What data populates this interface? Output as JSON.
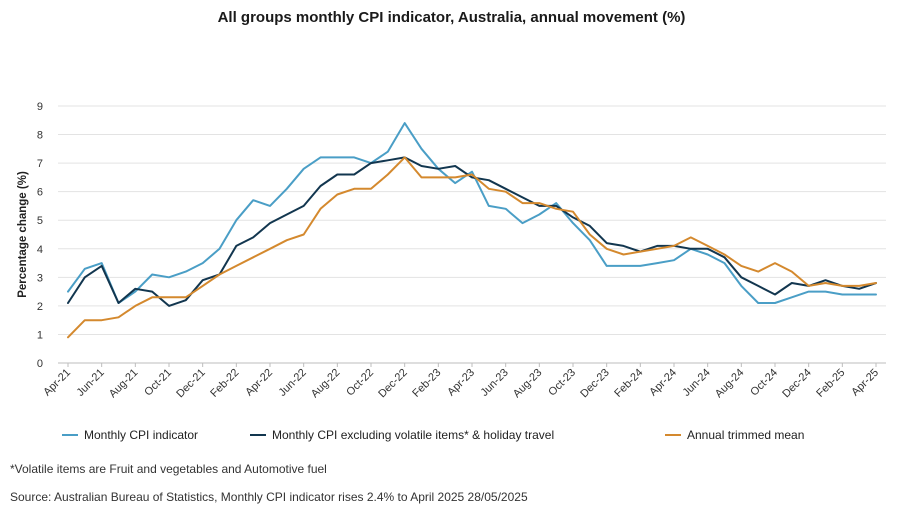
{
  "chart_data": {
    "type": "line",
    "title": "All groups monthly CPI indicator, Australia, annual movement (%)",
    "ylabel": "Percentage change (%)",
    "xlabel": "",
    "ylim": [
      0,
      9
    ],
    "yticks": [
      "0",
      "1",
      "2",
      "3",
      "4",
      "5",
      "6",
      "7",
      "8",
      "9"
    ],
    "grid": "horizontal",
    "legend_position": "bottom",
    "x": [
      "Apr-21",
      "May-21",
      "Jun-21",
      "Jul-21",
      "Aug-21",
      "Sep-21",
      "Oct-21",
      "Nov-21",
      "Dec-21",
      "Jan-22",
      "Feb-22",
      "Mar-22",
      "Apr-22",
      "May-22",
      "Jun-22",
      "Jul-22",
      "Aug-22",
      "Sep-22",
      "Oct-22",
      "Nov-22",
      "Dec-22",
      "Jan-23",
      "Feb-23",
      "Mar-23",
      "Apr-23",
      "May-23",
      "Jun-23",
      "Jul-23",
      "Aug-23",
      "Sep-23",
      "Oct-23",
      "Nov-23",
      "Dec-23",
      "Jan-24",
      "Feb-24",
      "Mar-24",
      "Apr-24",
      "May-24",
      "Jun-24",
      "Jul-24",
      "Aug-24",
      "Sep-24",
      "Oct-24",
      "Nov-24",
      "Dec-24",
      "Jan-25",
      "Feb-25",
      "Mar-25",
      "Apr-25"
    ],
    "x_tick_labels": [
      "Apr-21",
      "Jun-21",
      "Aug-21",
      "Oct-21",
      "Dec-21",
      "Feb-22",
      "Apr-22",
      "Jun-22",
      "Aug-22",
      "Oct-22",
      "Dec-22",
      "Feb-23",
      "Apr-23",
      "Jun-23",
      "Aug-23",
      "Oct-23",
      "Dec-23",
      "Feb-24",
      "Apr-24",
      "Jun-24",
      "Aug-24",
      "Oct-24",
      "Dec-24",
      "Feb-25",
      "Apr-25"
    ],
    "series": [
      {
        "name": "Monthly CPI indicator",
        "color": "#4a9ec6",
        "values": [
          2.5,
          3.3,
          3.5,
          2.1,
          2.5,
          3.1,
          3.0,
          3.2,
          3.5,
          4.0,
          5.0,
          5.7,
          5.5,
          6.1,
          6.8,
          7.2,
          7.2,
          7.2,
          7.0,
          7.4,
          8.4,
          7.5,
          6.8,
          6.3,
          6.7,
          5.5,
          5.4,
          4.9,
          5.2,
          5.6,
          4.9,
          4.3,
          3.4,
          3.4,
          3.4,
          3.5,
          3.6,
          4.0,
          3.8,
          3.5,
          2.7,
          2.1,
          2.1,
          2.3,
          2.5,
          2.5,
          2.4,
          2.4,
          2.4
        ]
      },
      {
        "name": "Monthly CPI excluding volatile items* & holiday travel",
        "color": "#12364f",
        "values": [
          2.1,
          3.0,
          3.4,
          2.1,
          2.6,
          2.5,
          2.0,
          2.2,
          2.9,
          3.1,
          4.1,
          4.4,
          4.9,
          5.2,
          5.5,
          6.2,
          6.6,
          6.6,
          7.0,
          7.1,
          7.2,
          6.9,
          6.8,
          6.9,
          6.5,
          6.4,
          6.1,
          5.8,
          5.5,
          5.5,
          5.1,
          4.8,
          4.2,
          4.1,
          3.9,
          4.1,
          4.1,
          4.0,
          4.0,
          3.7,
          3.0,
          2.7,
          2.4,
          2.8,
          2.7,
          2.9,
          2.7,
          2.6,
          2.8
        ]
      },
      {
        "name": "Annual trimmed mean",
        "color": "#d4892e",
        "values": [
          0.9,
          1.5,
          1.5,
          1.6,
          2.0,
          2.3,
          2.3,
          2.3,
          2.7,
          3.1,
          3.4,
          3.7,
          4.0,
          4.3,
          4.5,
          5.4,
          5.9,
          6.1,
          6.1,
          6.6,
          7.2,
          6.5,
          6.5,
          6.5,
          6.6,
          6.1,
          6.0,
          5.6,
          5.6,
          5.4,
          5.3,
          4.5,
          4.0,
          3.8,
          3.9,
          4.0,
          4.1,
          4.4,
          4.1,
          3.8,
          3.4,
          3.2,
          3.5,
          3.2,
          2.7,
          2.8,
          2.7,
          2.7,
          2.8
        ]
      }
    ]
  },
  "footnote": "*Volatile items are Fruit and vegetables and Automotive fuel",
  "source": "Source: Australian Bureau of Statistics, Monthly CPI indicator rises 2.4% to April 2025 28/05/2025"
}
